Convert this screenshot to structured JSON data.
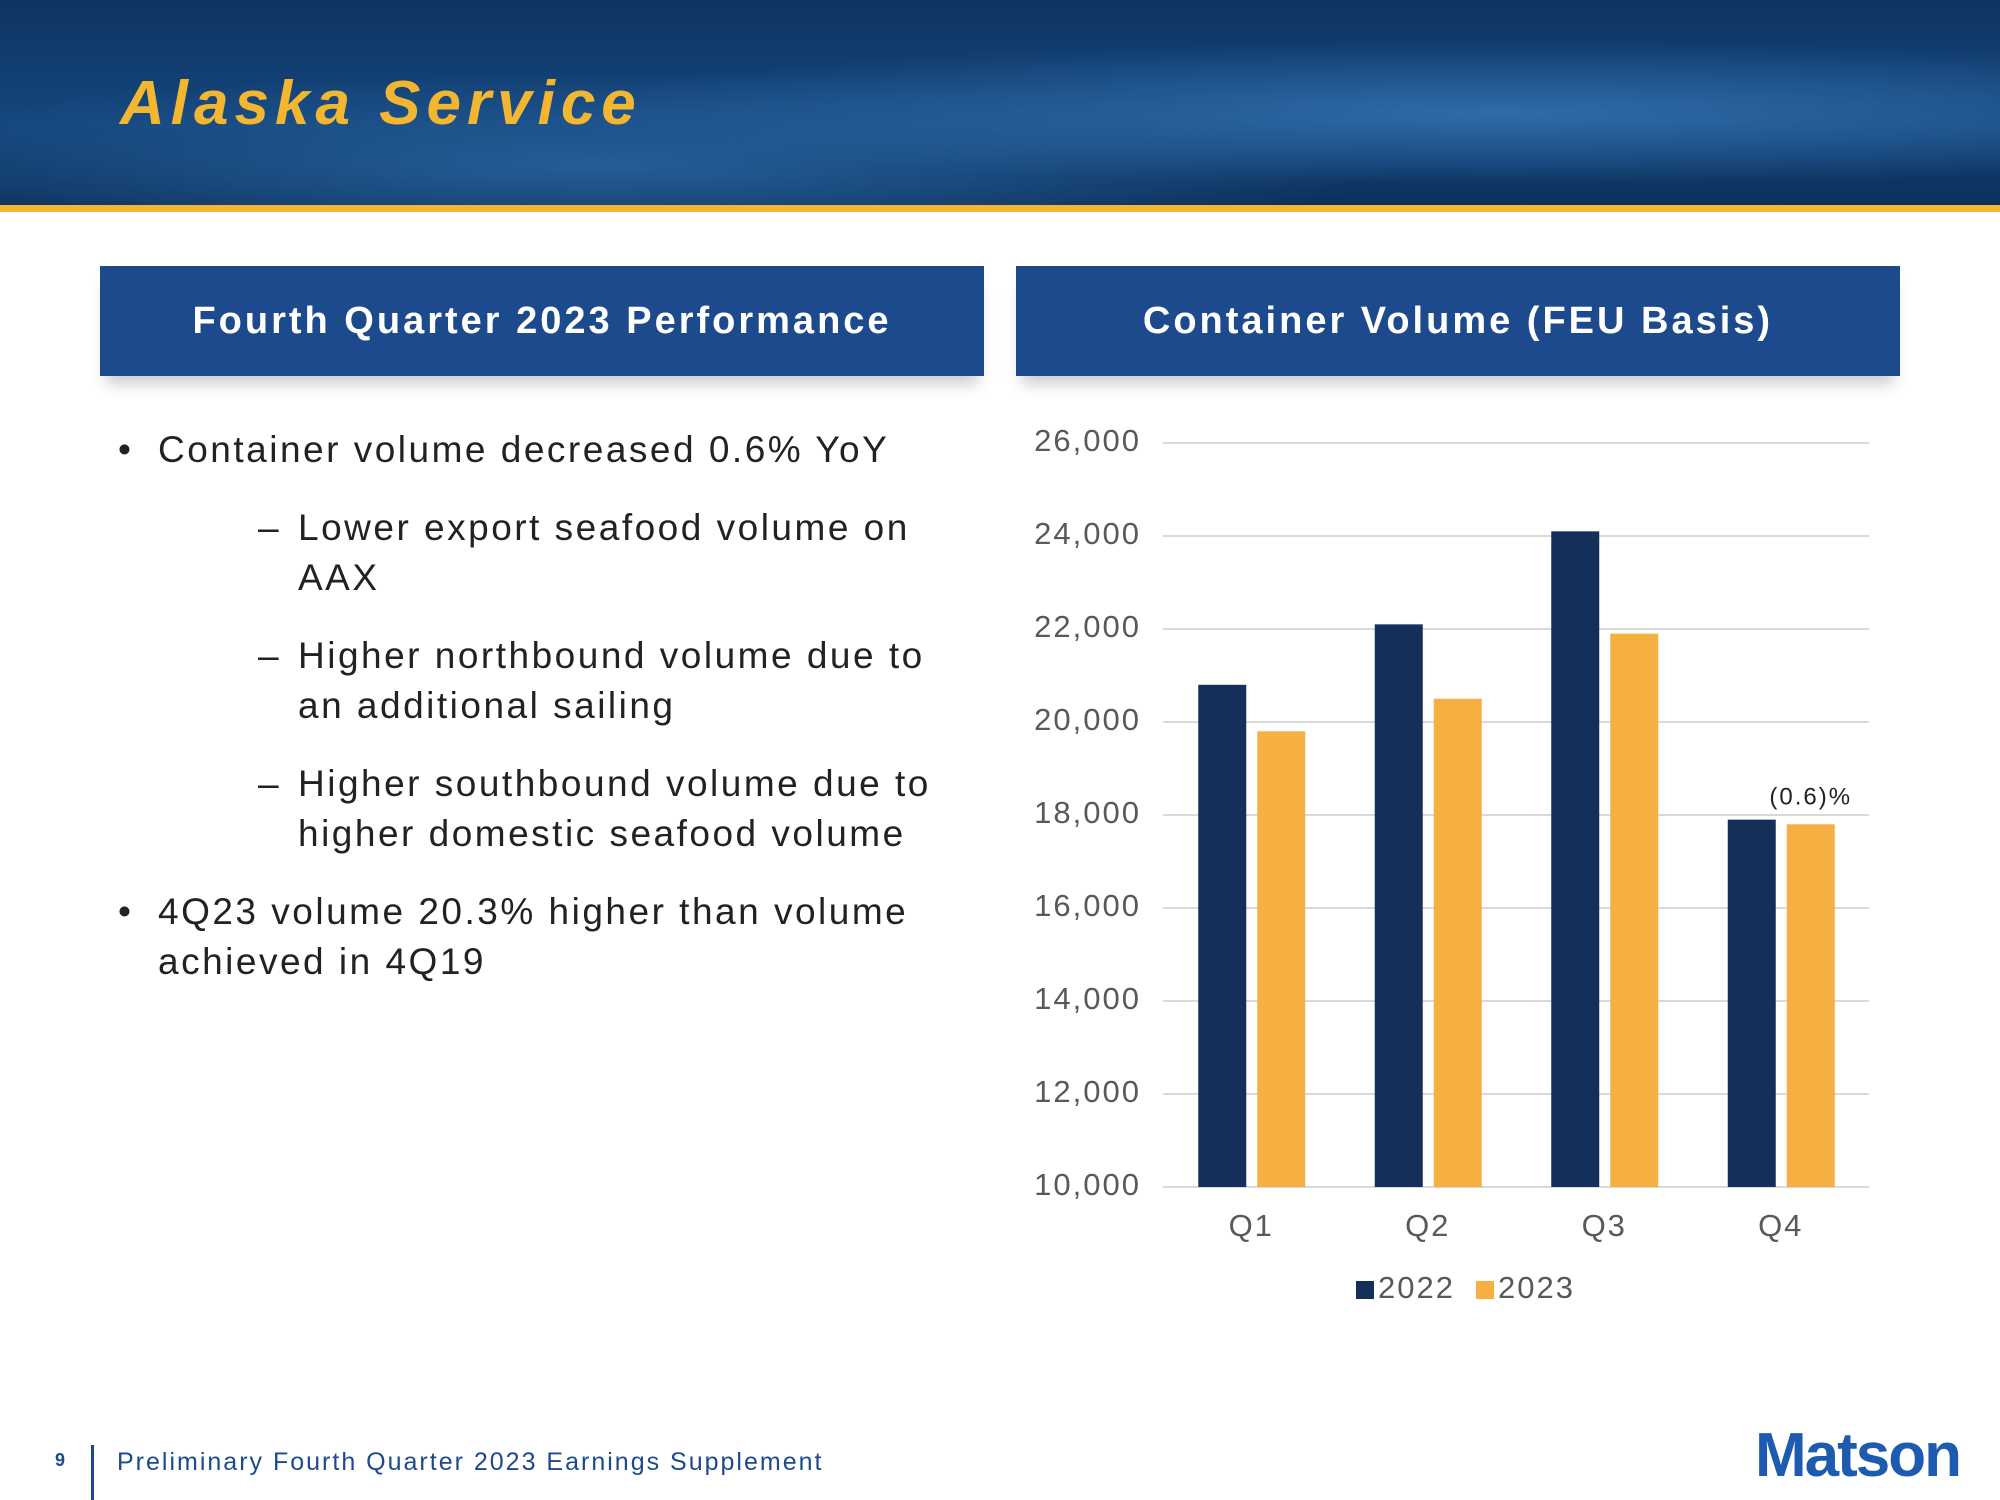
{
  "header": {
    "title": "Alaska Service"
  },
  "left_panel": {
    "title": "Fourth Quarter 2023 Performance",
    "bullets": [
      {
        "text": "Container volume decreased 0.6% YoY",
        "sub": [
          "Lower export seafood volume on AAX",
          "Higher northbound volume due to an additional sailing",
          "Higher southbound volume due to higher domestic seafood volume"
        ]
      },
      {
        "text": "4Q23 volume 20.3% higher than volume achieved in 4Q19"
      }
    ]
  },
  "chart_data": {
    "type": "bar",
    "title": "Container Volume (FEU Basis)",
    "categories": [
      "Q1",
      "Q2",
      "Q3",
      "Q4"
    ],
    "series": [
      {
        "name": "2022",
        "color": "#14305a",
        "values": [
          20800,
          22100,
          24100,
          17900
        ]
      },
      {
        "name": "2023",
        "color": "#f5b041",
        "values": [
          19800,
          20500,
          21900,
          17800
        ]
      }
    ],
    "annotation": "(0.6)%",
    "ylim": [
      10000,
      26000
    ],
    "yticks": [
      {
        "value": 10000,
        "label": "10,000"
      },
      {
        "value": 12000,
        "label": "12,000"
      },
      {
        "value": 14000,
        "label": "14,000"
      },
      {
        "value": 16000,
        "label": "16,000"
      },
      {
        "value": 18000,
        "label": "18,000"
      },
      {
        "value": 20000,
        "label": "20,000"
      },
      {
        "value": 22000,
        "label": "22,000"
      },
      {
        "value": 24000,
        "label": "24,000"
      },
      {
        "value": 26000,
        "label": "26,000"
      }
    ],
    "grid": true,
    "legend": "bottom"
  },
  "footer": {
    "page": "9",
    "text": "Preliminary Fourth Quarter 2023 Earnings Supplement",
    "logo": "Matson"
  }
}
